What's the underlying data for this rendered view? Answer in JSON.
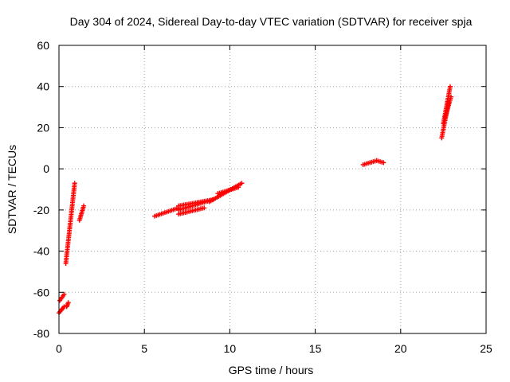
{
  "chart_data": {
    "type": "scatter",
    "title": "Day 304 of 2024, Sidereal Day-to-day VTEC variation (SDTVAR) for receiver spja",
    "xlabel": "GPS time / hours",
    "ylabel": "SDTVAR / TECUs",
    "xlim": [
      0,
      25
    ],
    "ylim": [
      -80,
      60
    ],
    "xticks": [
      "0",
      "5",
      "10",
      "15",
      "20",
      "25"
    ],
    "yticks": [
      "-80",
      "-60",
      "-40",
      "-20",
      "0",
      "20",
      "40",
      "60"
    ],
    "grid": true,
    "marker": "plus",
    "color": "#ff0000",
    "segments": [
      {
        "x": [
          0.0,
          0.3
        ],
        "y": [
          -70,
          -67
        ]
      },
      {
        "x": [
          0.05,
          0.3
        ],
        "y": [
          -64,
          -61
        ]
      },
      {
        "x": [
          0.45,
          0.55
        ],
        "y": [
          -67,
          -65
        ]
      },
      {
        "x": [
          0.4,
          0.92
        ],
        "y": [
          -46,
          -7
        ]
      },
      {
        "x": [
          1.2,
          1.45
        ],
        "y": [
          -25,
          -18
        ]
      },
      {
        "x": [
          5.6,
          7.0
        ],
        "y": [
          -23,
          -19
        ]
      },
      {
        "x": [
          7.0,
          9.0
        ],
        "y": [
          -20,
          -15
        ]
      },
      {
        "x": [
          7.0,
          9.0
        ],
        "y": [
          -18,
          -15
        ]
      },
      {
        "x": [
          7.0,
          8.5
        ],
        "y": [
          -22,
          -19
        ]
      },
      {
        "x": [
          8.8,
          10.7
        ],
        "y": [
          -16,
          -7
        ]
      },
      {
        "x": [
          9.3,
          10.5
        ],
        "y": [
          -12,
          -9
        ]
      },
      {
        "x": [
          17.8,
          18.6
        ],
        "y": [
          2,
          4
        ]
      },
      {
        "x": [
          18.6,
          19.0
        ],
        "y": [
          4,
          3
        ]
      },
      {
        "x": [
          22.4,
          22.8
        ],
        "y": [
          15,
          32
        ]
      },
      {
        "x": [
          22.5,
          22.9
        ],
        "y": [
          22,
          40
        ]
      },
      {
        "x": [
          22.6,
          22.95
        ],
        "y": [
          25,
          35
        ]
      }
    ]
  }
}
